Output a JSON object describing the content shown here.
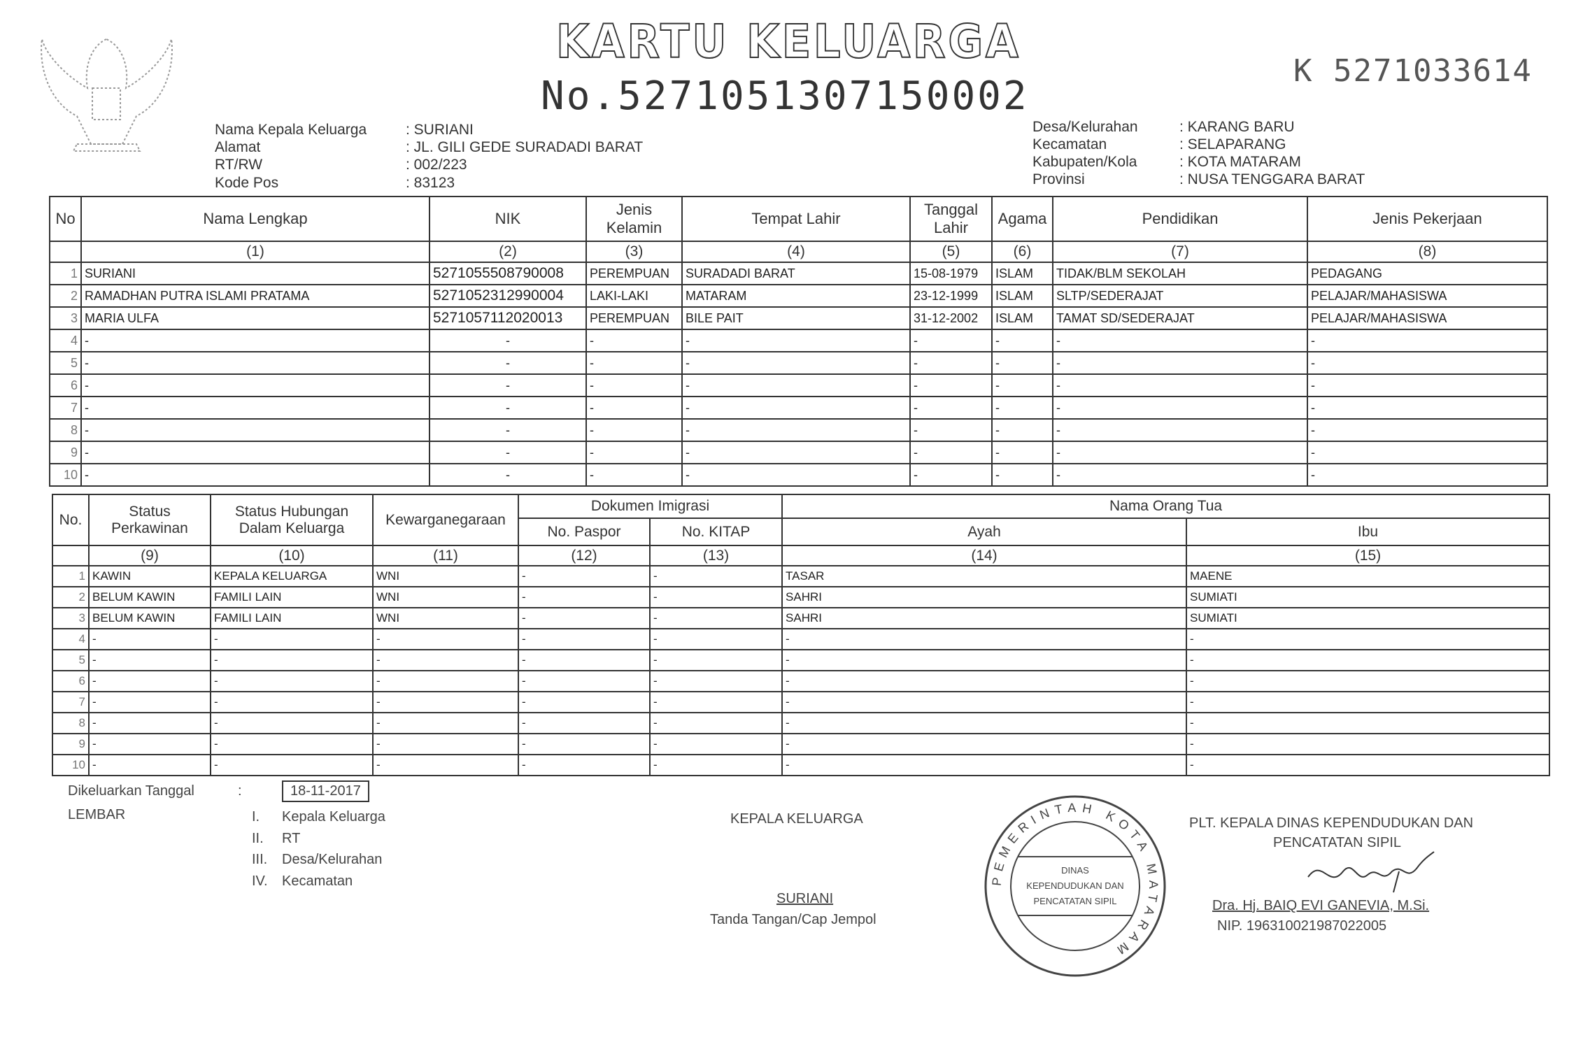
{
  "header": {
    "title": "KARTU KELUARGA",
    "number": "No.5271051307150002",
    "serial": "K 5271033614"
  },
  "info_left": [
    {
      "label": "Nama Kepala Keluarga",
      "value": ": SURIANI"
    },
    {
      "label": "Alamat",
      "value": ": JL. GILI GEDE SURADADI BARAT"
    },
    {
      "label": "RT/RW",
      "value": ": 002/223"
    },
    {
      "label": "Kode Pos",
      "value": ": 83123"
    }
  ],
  "info_right": [
    {
      "label": "Desa/Kelurahan",
      "value": ": KARANG BARU"
    },
    {
      "label": "Kecamatan",
      "value": ": SELAPARANG"
    },
    {
      "label": "Kabupaten/Kola",
      "value": ": KOTA MATARAM"
    },
    {
      "label": "Provinsi",
      "value": ": NUSA TENGGARA BARAT"
    }
  ],
  "table1": {
    "headers": [
      "No",
      "Nama Lengkap",
      "NIK",
      "Jenis Kelamin",
      "Tempat Lahir",
      "Tanggal Lahir",
      "Agama",
      "Pendidikan",
      "Jenis Pekerjaan"
    ],
    "numbers": [
      "",
      "(1)",
      "(2)",
      "(3)",
      "(4)",
      "(5)",
      "(6)",
      "(7)",
      "(8)"
    ],
    "rows": [
      [
        "1",
        "SURIANI",
        "5271055508790008",
        "PEREMPUAN",
        "SURADADI BARAT",
        "15-08-1979",
        "ISLAM",
        "TIDAK/BLM SEKOLAH",
        "PEDAGANG"
      ],
      [
        "2",
        "RAMADHAN PUTRA ISLAMI PRATAMA",
        "5271052312990004",
        "LAKI-LAKI",
        "MATARAM",
        "23-12-1999",
        "ISLAM",
        "SLTP/SEDERAJAT",
        "PELAJAR/MAHASISWA"
      ],
      [
        "3",
        "MARIA ULFA",
        "5271057112020013",
        "PEREMPUAN",
        "BILE PAIT",
        "31-12-2002",
        "ISLAM",
        "TAMAT SD/SEDERAJAT",
        "PELAJAR/MAHASISWA"
      ],
      [
        "4",
        "-",
        "-",
        "-",
        "-",
        "-",
        "-",
        "-",
        "-"
      ],
      [
        "5",
        "-",
        "-",
        "-",
        "-",
        "-",
        "-",
        "-",
        "-"
      ],
      [
        "6",
        "-",
        "-",
        "-",
        "-",
        "-",
        "-",
        "-",
        "-"
      ],
      [
        "7",
        "-",
        "-",
        "-",
        "-",
        "-",
        "-",
        "-",
        "-"
      ],
      [
        "8",
        "-",
        "-",
        "-",
        "-",
        "-",
        "-",
        "-",
        "-"
      ],
      [
        "9",
        "-",
        "-",
        "-",
        "-",
        "-",
        "-",
        "-",
        "-"
      ],
      [
        "10",
        "-",
        "-",
        "-",
        "-",
        "-",
        "-",
        "-",
        "-"
      ]
    ]
  },
  "table2": {
    "no": "No.",
    "status_perkawinan": "Status Perkawinan",
    "status_hubungan": "Status Hubungan Dalam Keluarga",
    "kewarganegaraan": "Kewarganegaraan",
    "dokumen_imigrasi": "Dokumen Imigrasi",
    "no_paspor": "No. Paspor",
    "no_kitap": "No. KITAP",
    "nama_orang_tua": "Nama Orang Tua",
    "ayah": "Ayah",
    "ibu": "Ibu",
    "numbers": [
      "",
      "(9)",
      "(10)",
      "(11)",
      "(12)",
      "(13)",
      "(14)",
      "(15)"
    ],
    "rows": [
      [
        "1",
        "KAWIN",
        "KEPALA KELUARGA",
        "WNI",
        "-",
        "-",
        "TASAR",
        "MAENE"
      ],
      [
        "2",
        "BELUM KAWIN",
        "FAMILI LAIN",
        "WNI",
        "-",
        "-",
        "SAHRI",
        "SUMIATI"
      ],
      [
        "3",
        "BELUM KAWIN",
        "FAMILI LAIN",
        "WNI",
        "-",
        "-",
        "SAHRI",
        "SUMIATI"
      ],
      [
        "4",
        "-",
        "-",
        "-",
        "-",
        "-",
        "-",
        "-"
      ],
      [
        "5",
        "-",
        "-",
        "-",
        "-",
        "-",
        "-",
        "-"
      ],
      [
        "6",
        "-",
        "-",
        "-",
        "-",
        "-",
        "-",
        "-"
      ],
      [
        "7",
        "-",
        "-",
        "-",
        "-",
        "-",
        "-",
        "-"
      ],
      [
        "8",
        "-",
        "-",
        "-",
        "-",
        "-",
        "-",
        "-"
      ],
      [
        "9",
        "-",
        "-",
        "-",
        "-",
        "-",
        "-",
        "-"
      ],
      [
        "10",
        "-",
        "-",
        "-",
        "-",
        "-",
        "-",
        "-"
      ]
    ]
  },
  "footer": {
    "issued_label": "Dikeluarkan Tanggal",
    "issued_colon": ":",
    "issued_date": "18-11-2017",
    "lembar_label": "LEMBAR",
    "lembar": [
      {
        "num": "I.",
        "text": "Kepala Keluarga"
      },
      {
        "num": "II.",
        "text": "RT"
      },
      {
        "num": "III.",
        "text": "Desa/Kelurahan"
      },
      {
        "num": "IV.",
        "text": "Kecamatan"
      }
    ],
    "head_title": "KEPALA KELUARGA",
    "head_name": "SURIANI",
    "head_sign_caption": "Tanda Tangan/Cap Jempol",
    "official_title_1": "PLT. KEPALA DINAS KEPENDUDUKAN DAN",
    "official_title_2": "PENCATATAN SIPIL",
    "official_name": "Dra. Hj. BAIQ EVI GANEVIA, M.Si.",
    "official_nip": "NIP. 196310021987022005",
    "stamp_text": "PEMERINTAH KOTA MATARAM",
    "stamp_inner": "DINAS KEPENDUDUKAN DAN PENCATATAN SIPIL"
  }
}
